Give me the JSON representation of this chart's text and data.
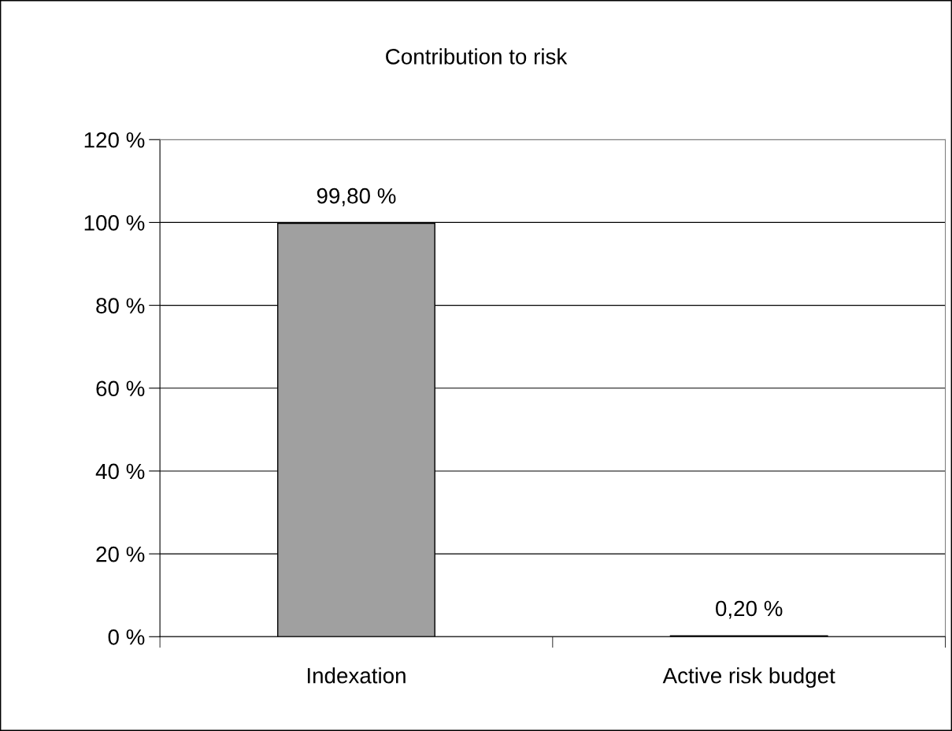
{
  "chart_data": {
    "type": "bar",
    "title": "Contribution to risk",
    "categories": [
      "Indexation",
      "Active risk budget"
    ],
    "values": [
      99.8,
      0.2
    ],
    "value_labels": [
      "99,80 %",
      "0,20 %"
    ],
    "color": "#a0a0a0",
    "ylim": [
      0,
      120
    ],
    "yticks": [
      {
        "value": 0,
        "label": "0 %"
      },
      {
        "value": 20,
        "label": "20 %"
      },
      {
        "value": 40,
        "label": "40 %"
      },
      {
        "value": 60,
        "label": "60 %"
      },
      {
        "value": 80,
        "label": "80 %"
      },
      {
        "value": 100,
        "label": "100 %"
      },
      {
        "value": 120,
        "label": "120 %"
      }
    ],
    "grid": "y",
    "legend": false
  }
}
